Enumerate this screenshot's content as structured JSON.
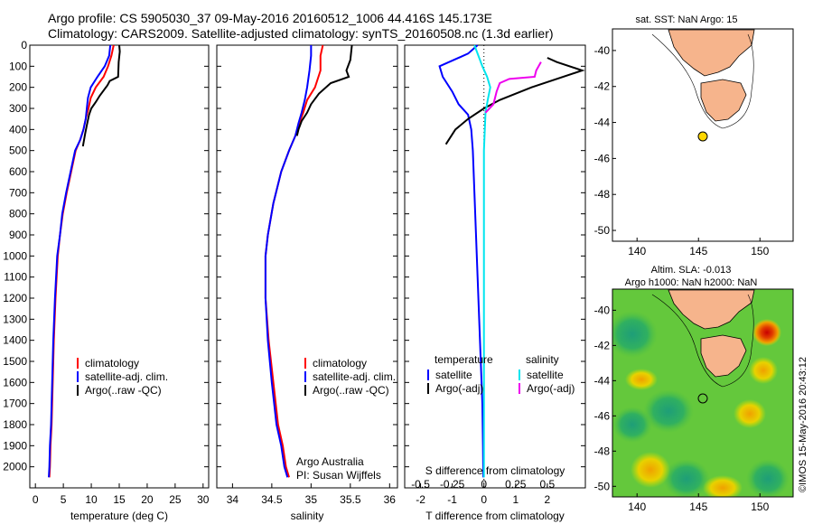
{
  "header": {
    "line1": "Argo profile: CS 5905030_37 09-May-2016 20160512_1006 44.416S 145.173E",
    "line2": "Climatology: CARS2009. Satellite-adjusted climatology: synTS_20160508.nc (1.3d earlier)"
  },
  "credit": "©IMOS 15-May-2016 20:43:12",
  "colors": {
    "climatology": "#ff0000",
    "satellite": "#0000ff",
    "argo": "#000000",
    "sal_satellite": "#00e5ee",
    "sal_argo": "#ee00ee",
    "land": "#f6b48c"
  },
  "chart_data": [
    {
      "id": "temperature",
      "type": "line",
      "xlabel": "temperature (deg C)",
      "ylabel": "",
      "xlim": [
        -1,
        31
      ],
      "ylim": [
        2100,
        0
      ],
      "xticks": [
        "0",
        "5",
        "10",
        "15",
        "20",
        "25",
        "30"
      ],
      "yticks": [
        "0",
        "100",
        "200",
        "300",
        "400",
        "500",
        "600",
        "700",
        "800",
        "900",
        "1000",
        "1100",
        "1200",
        "1300",
        "1400",
        "1500",
        "1600",
        "1700",
        "1800",
        "1900",
        "2000"
      ],
      "legend": [
        "climatology",
        "satellite-adj. clim.",
        "Argo(..raw -QC)"
      ],
      "series": [
        {
          "name": "climatology",
          "color": "#ff0000",
          "x": [
            14.0,
            13.6,
            13.0,
            12.2,
            10.8,
            9.9,
            9.5,
            9.0,
            8.6,
            8.0,
            7.2,
            6.4,
            5.6,
            4.9,
            4.4,
            4.0,
            3.6,
            3.3,
            3.1,
            2.9,
            2.7,
            2.6,
            2.5
          ],
          "y": [
            0,
            50,
            100,
            150,
            200,
            250,
            300,
            350,
            400,
            450,
            500,
            600,
            700,
            800,
            900,
            1000,
            1200,
            1400,
            1600,
            1800,
            1900,
            2000,
            2050
          ]
        },
        {
          "name": "satellite-adj. clim.",
          "color": "#0000ff",
          "x": [
            13.4,
            13.2,
            12.4,
            11.1,
            9.9,
            9.4,
            9.2,
            9.0,
            8.6,
            8.0,
            7.1,
            6.3,
            5.5,
            4.8,
            4.4,
            3.9,
            3.5,
            3.2,
            3.0,
            2.8,
            2.6,
            2.5,
            2.4
          ],
          "y": [
            0,
            50,
            100,
            150,
            200,
            250,
            300,
            350,
            400,
            450,
            500,
            600,
            700,
            800,
            900,
            1000,
            1200,
            1400,
            1600,
            1800,
            1900,
            2000,
            2050
          ]
        },
        {
          "name": "Argo(..raw -QC)",
          "color": "#000000",
          "x": [
            15.0,
            15.1,
            14.9,
            14.8,
            13.3,
            12.9,
            11.5,
            10.8,
            10.0,
            9.6,
            9.2,
            8.9,
            8.5
          ],
          "y": [
            0,
            30,
            80,
            150,
            170,
            190,
            240,
            270,
            300,
            330,
            380,
            420,
            480
          ]
        }
      ]
    },
    {
      "id": "salinity",
      "type": "line",
      "xlabel": "salinity",
      "ylabel": "",
      "xlim": [
        33.8,
        36.1
      ],
      "ylim": [
        2100,
        0
      ],
      "xticks": [
        "34",
        "34.5",
        "35",
        "35.5",
        "36"
      ],
      "legend": [
        "climatology",
        "satellite-adj. clim.",
        "Argo(..raw -QC)"
      ],
      "annotation": [
        "Argo Australia",
        "PI: Susan Wijffels"
      ],
      "series": [
        {
          "name": "climatology",
          "color": "#ff0000",
          "x": [
            35.15,
            35.12,
            35.12,
            35.05,
            34.95,
            34.9,
            34.85,
            34.8,
            34.72,
            34.62,
            34.52,
            34.45,
            34.42,
            34.42,
            34.46,
            34.52,
            34.58,
            34.64,
            34.68,
            34.72
          ],
          "y": [
            0,
            50,
            120,
            200,
            260,
            320,
            370,
            430,
            500,
            600,
            750,
            900,
            1000,
            1200,
            1400,
            1600,
            1800,
            1900,
            2000,
            2050
          ]
        },
        {
          "name": "satellite-adj. clim.",
          "color": "#0000ff",
          "x": [
            35.0,
            35.0,
            34.98,
            34.95,
            34.92,
            34.88,
            34.84,
            34.8,
            34.72,
            34.62,
            34.52,
            34.45,
            34.42,
            34.42,
            34.45,
            34.5,
            34.56,
            34.62,
            34.66,
            34.7
          ],
          "y": [
            0,
            50,
            120,
            200,
            260,
            320,
            370,
            430,
            500,
            600,
            750,
            900,
            1000,
            1200,
            1400,
            1600,
            1800,
            1900,
            2000,
            2050
          ]
        },
        {
          "name": "Argo(..raw -QC)",
          "color": "#000000",
          "x": [
            35.52,
            35.5,
            35.45,
            35.48,
            35.25,
            35.1,
            35.0,
            34.95,
            34.88,
            34.84,
            34.82
          ],
          "y": [
            0,
            70,
            120,
            150,
            180,
            230,
            280,
            320,
            360,
            400,
            430
          ]
        }
      ]
    },
    {
      "id": "difference",
      "type": "line",
      "xlabel": "T difference from climatology",
      "title_top": "S difference from climatology",
      "xlim_T": [
        -2.5,
        3.2
      ],
      "xticks_T": [
        "-2",
        "-1",
        "0",
        "1",
        "2"
      ],
      "xticks_S": [
        "-0.5",
        "-0.25",
        "0",
        "0.25",
        "0.5"
      ],
      "ylim": [
        2100,
        0
      ],
      "legend_titles": [
        "temperature",
        "salinity"
      ],
      "legend": [
        "satellite",
        "Argo(-adj)",
        "satellite",
        "Argo(-adj)"
      ],
      "series": [
        {
          "name": "satellite",
          "group": "temperature",
          "color": "#0000ff",
          "x": [
            -0.2,
            -0.5,
            -1.4,
            -1.3,
            -1.0,
            -0.8,
            -0.5,
            -0.4,
            -0.35,
            -0.3,
            -0.25,
            -0.2,
            -0.15,
            -0.1,
            -0.05,
            -0.03,
            -0.02
          ],
          "y": [
            0,
            40,
            100,
            150,
            220,
            280,
            330,
            400,
            500,
            700,
            900,
            1100,
            1300,
            1500,
            1700,
            1900,
            2050
          ]
        },
        {
          "name": "Argo(-adj)",
          "group": "temperature",
          "color": "#000000",
          "x": [
            2.0,
            2.3,
            3.1,
            1.5,
            0.5,
            0.0,
            -0.5,
            -0.9,
            -1.2
          ],
          "y": [
            60,
            80,
            120,
            200,
            260,
            300,
            350,
            400,
            470
          ]
        },
        {
          "name": "satellite",
          "group": "salinity",
          "color": "#00e5ee",
          "x": [
            -0.3,
            -0.2,
            -0.05,
            0.1,
            0.2,
            0.12,
            0.05,
            0.0,
            0.0,
            0.0
          ],
          "y": [
            0,
            40,
            100,
            150,
            200,
            260,
            320,
            500,
            1200,
            2050
          ]
        },
        {
          "name": "Argo(-adj)",
          "group": "salinity",
          "color": "#ee00ee",
          "x": [
            1.8,
            1.65,
            1.6,
            0.8,
            0.5,
            0.4,
            0.3,
            0.05
          ],
          "y": [
            80,
            120,
            150,
            160,
            180,
            220,
            280,
            320
          ]
        }
      ]
    }
  ],
  "maps": {
    "sst": {
      "title": "sat. SST: NaN Argo: 15",
      "xticks": [
        "140",
        "145",
        "150"
      ],
      "yticks": [
        "-40",
        "-42",
        "-44",
        "-46",
        "-48",
        "-50"
      ]
    },
    "sla": {
      "title1": "Altim. SLA: -0.013",
      "title2": "Argo h1000: NaN h2000: NaN",
      "xticks": [
        "140",
        "145",
        "150"
      ],
      "yticks": [
        "-40",
        "-42",
        "-44",
        "-46",
        "-48",
        "-50"
      ]
    }
  }
}
